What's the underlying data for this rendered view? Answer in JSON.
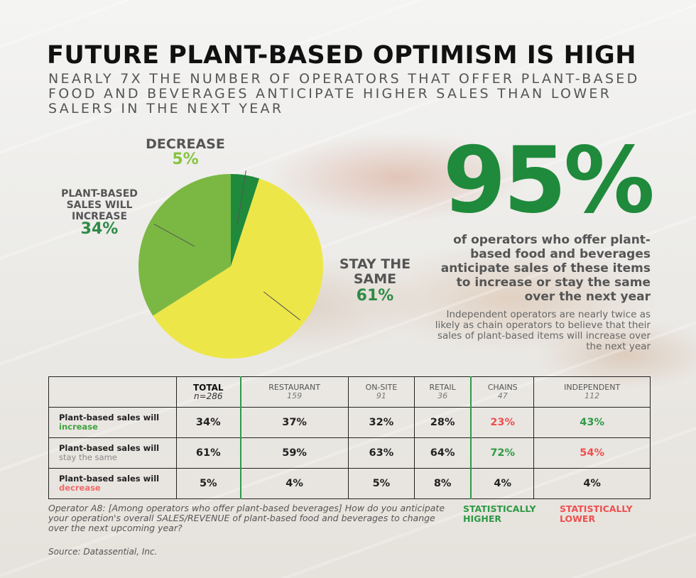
{
  "title": "FUTURE PLANT-BASED OPTIMISM IS HIGH",
  "subtitle": "NEARLY 7X THE NUMBER OF OPERATORS THAT OFFER PLANT-BASED FOOD AND BEVERAGES ANTICIPATE HIGHER SALES THAN LOWER SALERS IN THE NEXT YEAR",
  "chart_data": {
    "type": "pie",
    "labels": [
      "DECREASE",
      "PLANT-BASED SALES WILL INCREASE",
      "STAY THE SAME"
    ],
    "values": [
      5,
      34,
      61
    ],
    "value_labels": [
      "5%",
      "34%",
      "61%"
    ],
    "colors": [
      "#1f8a3b",
      "#7bb843",
      "#ede649"
    ]
  },
  "pie_labels": {
    "decrease": {
      "label": "DECREASE",
      "pct": "5%"
    },
    "increase": {
      "label": "PLANT-BASED SALES WILL INCREASE",
      "pct": "34%"
    },
    "stay": {
      "label": "STAY THE SAME",
      "pct": "61%"
    }
  },
  "highlight": {
    "big_number": "95%",
    "description": "of operators who offer plant-based food and beverages anticipate sales of these items to increase or stay the same over the next year",
    "note": "Independent operators are nearly twice as likely as chain operators to believe that their sales of plant-based items will increase over the next year"
  },
  "table": {
    "columns": [
      {
        "name": "TOTAL",
        "n": "n=286"
      },
      {
        "name": "RESTAURANT",
        "n": "159"
      },
      {
        "name": "ON-SITE",
        "n": "91"
      },
      {
        "name": "RETAIL",
        "n": "36"
      },
      {
        "name": "CHAINS",
        "n": "47"
      },
      {
        "name": "INDEPENDENT",
        "n": "112"
      }
    ],
    "rows": [
      {
        "label_a": "Plant-based sales will",
        "label_b": "increase",
        "values": [
          "34%",
          "37%",
          "32%",
          "28%",
          "23%",
          "43%"
        ]
      },
      {
        "label_a": "Plant-based sales will",
        "label_b": "stay the same",
        "values": [
          "61%",
          "59%",
          "63%",
          "64%",
          "72%",
          "54%"
        ]
      },
      {
        "label_a": "Plant-based sales will",
        "label_b": "decrease",
        "values": [
          "5%",
          "4%",
          "5%",
          "8%",
          "4%",
          "4%"
        ]
      }
    ],
    "significance": {
      "higher_color": "#2e9a46",
      "lower_color": "#ef4f4f"
    }
  },
  "footer": {
    "question": "Operator A8: [Among operators who offer plant-based beverages] How do you anticipate your operation's overall SALES/REVENUE of plant-based food and beverages to change over the next upcoming year?",
    "legend_higher": "STATISTICALLY HIGHER",
    "legend_lower": "STATISTICALLY LOWER",
    "source": "Source: Datassential, Inc."
  }
}
